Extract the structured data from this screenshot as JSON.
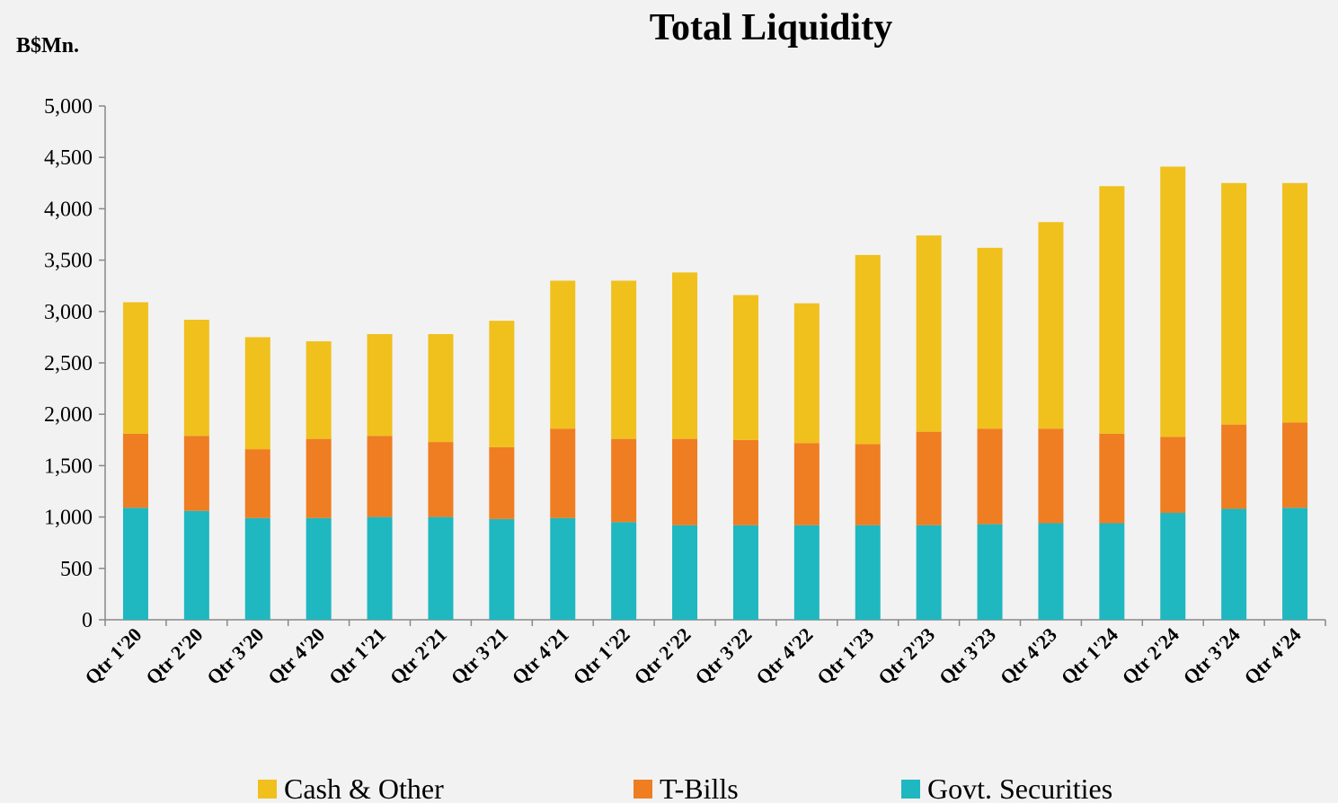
{
  "chart_data": {
    "type": "bar",
    "stacked": true,
    "title": "Total Liquidity",
    "y_label": "B$Mn.",
    "categories": [
      "Qtr 1'20",
      "Qtr 2'20",
      "Qtr 3'20",
      "Qtr 4'20",
      "Qtr 1'21",
      "Qtr 2'21",
      "Qtr 3'21",
      "Qtr 4'21",
      "Qtr 1'22",
      "Qtr 2'22",
      "Qtr 3'22",
      "Qtr 4'22",
      "Qtr 1'23",
      "Qtr 2'23",
      "Qtr 3'23",
      "Qtr 4'23",
      "Qtr 1'24",
      "Qtr 2'24",
      "Qtr 3'24",
      "Qtr 4'24"
    ],
    "series": [
      {
        "name": "Cash & Other",
        "color": "#f0c01d",
        "values": [
          1280,
          1130,
          1090,
          950,
          990,
          1050,
          1230,
          1440,
          1540,
          1620,
          1410,
          1360,
          1840,
          1910,
          1760,
          2010,
          2410,
          2630,
          2350,
          2330
        ]
      },
      {
        "name": "T-Bills",
        "color": "#ef7d22",
        "values": [
          720,
          730,
          670,
          770,
          790,
          730,
          700,
          870,
          810,
          840,
          830,
          800,
          790,
          910,
          930,
          920,
          870,
          740,
          820,
          830
        ]
      },
      {
        "name": "Govt. Securities",
        "color": "#1fb7c0",
        "values": [
          1090,
          1060,
          990,
          990,
          1000,
          1000,
          980,
          990,
          950,
          920,
          920,
          920,
          920,
          920,
          930,
          940,
          940,
          1040,
          1080,
          1090
        ]
      }
    ],
    "ylim": [
      0,
      5000
    ],
    "yticks": [
      0,
      500,
      {
        "value": 1000,
        "label": "1,000"
      },
      {
        "value": 1500,
        "label": "1,500"
      },
      {
        "value": 2000,
        "label": "2,000"
      },
      {
        "value": 2500,
        "label": "2,500"
      },
      {
        "value": 3000,
        "label": "3,000"
      },
      {
        "value": 3500,
        "label": "3,500"
      },
      {
        "value": 4000,
        "label": "4,000"
      },
      {
        "value": 4500,
        "label": "4,500"
      },
      {
        "value": 5000,
        "label": "5,000"
      }
    ],
    "grid": false,
    "legend": "bottom"
  }
}
